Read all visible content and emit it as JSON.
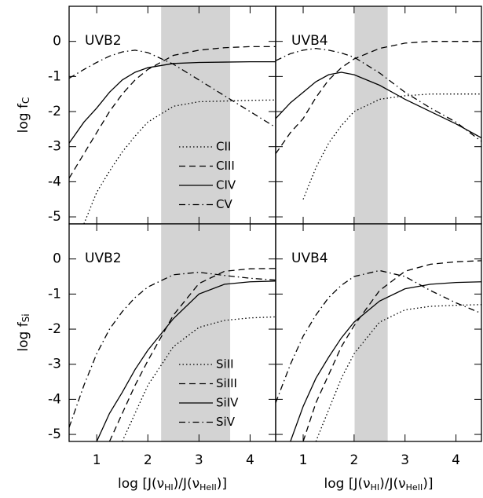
{
  "chart_data": [
    {
      "type": "line",
      "panel_label": "UVB2",
      "y_label": [
        "log f",
        "C"
      ],
      "legend": "lower center",
      "xlim": [
        0.46,
        4.5
      ],
      "ylim": [
        -5.2,
        1.0
      ],
      "xticks": [
        1,
        2,
        3,
        4
      ],
      "yticks": [
        0,
        -1,
        -2,
        -3,
        -4,
        -5
      ],
      "shaded": [
        2.26,
        3.61
      ],
      "shade_color": "#d3d3d3",
      "x": [
        0.46,
        0.75,
        1,
        1.25,
        1.5,
        1.75,
        2,
        2.5,
        3,
        3.5,
        4,
        4.5
      ],
      "series": [
        {
          "name": "CII",
          "color": "#000000",
          "dash": "1.5,3",
          "values": [
            null,
            -5.2,
            -4.3,
            -3.7,
            -3.15,
            -2.7,
            -2.3,
            -1.85,
            -1.72,
            -1.7,
            -1.68,
            -1.67
          ]
        },
        {
          "name": "CIII",
          "color": "#000000",
          "dash": "8,5",
          "values": [
            -3.9,
            -3.2,
            -2.6,
            -2.0,
            -1.5,
            -1.1,
            -0.8,
            -0.4,
            -0.25,
            -0.18,
            -0.15,
            -0.15
          ]
        },
        {
          "name": "CIV",
          "color": "#000000",
          "dash": "none",
          "values": [
            -2.9,
            -2.3,
            -1.9,
            -1.45,
            -1.1,
            -0.88,
            -0.75,
            -0.63,
            -0.6,
            -0.59,
            -0.58,
            -0.58
          ]
        },
        {
          "name": "CV",
          "color": "#000000",
          "dash": "8,4,1.5,4",
          "values": [
            -1.05,
            -0.8,
            -0.6,
            -0.42,
            -0.3,
            -0.25,
            -0.32,
            -0.65,
            -1.1,
            -1.55,
            -2.0,
            -2.45
          ]
        }
      ]
    },
    {
      "type": "line",
      "panel_label": "UVB4",
      "xlim": [
        0.46,
        4.5
      ],
      "ylim": [
        -5.2,
        1.0
      ],
      "xticks": [
        1,
        2,
        3,
        4
      ],
      "yticks": [
        0,
        -1,
        -2,
        -3,
        -4,
        -5
      ],
      "shaded": [
        2.01,
        2.66
      ],
      "shade_color": "#d3d3d3",
      "x": [
        0.46,
        0.75,
        1,
        1.25,
        1.5,
        1.75,
        2,
        2.5,
        3,
        3.5,
        4,
        4.5
      ],
      "series": [
        {
          "color": "#000000",
          "dash": "1.5,3",
          "values": [
            null,
            null,
            -4.5,
            -3.6,
            -2.9,
            -2.4,
            -2.0,
            -1.65,
            -1.55,
            -1.5,
            -1.5,
            -1.5
          ]
        },
        {
          "color": "#000000",
          "dash": "8,5",
          "values": [
            -3.2,
            -2.6,
            -2.2,
            -1.6,
            -1.1,
            -0.75,
            -0.5,
            -0.2,
            -0.05,
            0,
            0,
            0
          ]
        },
        {
          "color": "#000000",
          "dash": "none",
          "values": [
            -2.2,
            -1.75,
            -1.45,
            -1.15,
            -0.95,
            -0.88,
            -0.95,
            -1.25,
            -1.65,
            -2.0,
            -2.35,
            -2.75
          ]
        },
        {
          "color": "#000000",
          "dash": "8,4,1.5,4",
          "values": [
            -0.55,
            -0.35,
            -0.25,
            -0.2,
            -0.25,
            -0.33,
            -0.45,
            -0.9,
            -1.45,
            -1.9,
            -2.3,
            -2.85
          ]
        }
      ]
    },
    {
      "type": "line",
      "panel_label": "UVB2",
      "y_label": [
        "log f",
        "Si"
      ],
      "x_label": [
        "log [J(ν",
        "HI",
        ")/J(ν",
        "HeII",
        ")]"
      ],
      "legend": "lower center",
      "xlim": [
        0.46,
        4.5
      ],
      "ylim": [
        -5.2,
        1.0
      ],
      "xticks": [
        1,
        2,
        3,
        4
      ],
      "yticks": [
        0,
        -1,
        -2,
        -3,
        -4,
        -5
      ],
      "shaded": [
        2.26,
        3.61
      ],
      "shade_color": "#d3d3d3",
      "x": [
        0.46,
        0.75,
        1,
        1.25,
        1.5,
        1.75,
        2,
        2.5,
        3,
        3.5,
        4,
        4.5
      ],
      "series": [
        {
          "name": "SiII",
          "color": "#000000",
          "dash": "1.5,3",
          "values": [
            null,
            null,
            null,
            null,
            -5.2,
            -4.4,
            -3.6,
            -2.5,
            -1.95,
            -1.75,
            -1.68,
            -1.65
          ]
        },
        {
          "name": "SiIII",
          "color": "#000000",
          "dash": "8,5",
          "values": [
            null,
            null,
            null,
            -5.2,
            -4.4,
            -3.6,
            -2.9,
            -1.6,
            -0.7,
            -0.35,
            -0.28,
            -0.27
          ]
        },
        {
          "name": "SiIV",
          "color": "#000000",
          "dash": "none",
          "values": [
            null,
            null,
            -5.2,
            -4.4,
            -3.8,
            -3.15,
            -2.6,
            -1.7,
            -1.0,
            -0.72,
            -0.65,
            -0.63
          ]
        },
        {
          "name": "SiV",
          "color": "#000000",
          "dash": "8,4,1.5,4",
          "values": [
            -4.8,
            -3.6,
            -2.7,
            -2.0,
            -1.5,
            -1.1,
            -0.8,
            -0.45,
            -0.38,
            -0.47,
            -0.55,
            -0.6
          ]
        }
      ]
    },
    {
      "type": "line",
      "panel_label": "UVB4",
      "x_label": [
        "log [J(ν",
        "HI",
        ")/J(ν",
        "HeII",
        ")]"
      ],
      "xlim": [
        0.46,
        4.5
      ],
      "ylim": [
        -5.2,
        1.0
      ],
      "xticks": [
        1,
        2,
        3,
        4
      ],
      "yticks": [
        0,
        -1,
        -2,
        -3,
        -4,
        -5
      ],
      "shaded": [
        2.01,
        2.66
      ],
      "shade_color": "#d3d3d3",
      "x": [
        0.46,
        0.75,
        1,
        1.25,
        1.5,
        1.75,
        2,
        2.5,
        3,
        3.5,
        4,
        4.5
      ],
      "series": [
        {
          "color": "#000000",
          "dash": "1.5,3",
          "values": [
            null,
            null,
            null,
            -5.2,
            -4.3,
            -3.4,
            -2.7,
            -1.8,
            -1.45,
            -1.35,
            -1.32,
            -1.3
          ]
        },
        {
          "color": "#000000",
          "dash": "8,5",
          "values": [
            null,
            null,
            -5.2,
            -4.1,
            -3.3,
            -2.5,
            -1.9,
            -0.9,
            -0.35,
            -0.15,
            -0.08,
            -0.05
          ]
        },
        {
          "color": "#000000",
          "dash": "none",
          "values": [
            null,
            -5.2,
            -4.2,
            -3.4,
            -2.8,
            -2.25,
            -1.8,
            -1.2,
            -0.85,
            -0.72,
            -0.67,
            -0.65
          ]
        },
        {
          "color": "#000000",
          "dash": "8,4,1.5,4",
          "values": [
            -4.1,
            -3.0,
            -2.2,
            -1.6,
            -1.1,
            -0.75,
            -0.5,
            -0.33,
            -0.5,
            -0.9,
            -1.25,
            -1.55
          ]
        }
      ]
    }
  ]
}
